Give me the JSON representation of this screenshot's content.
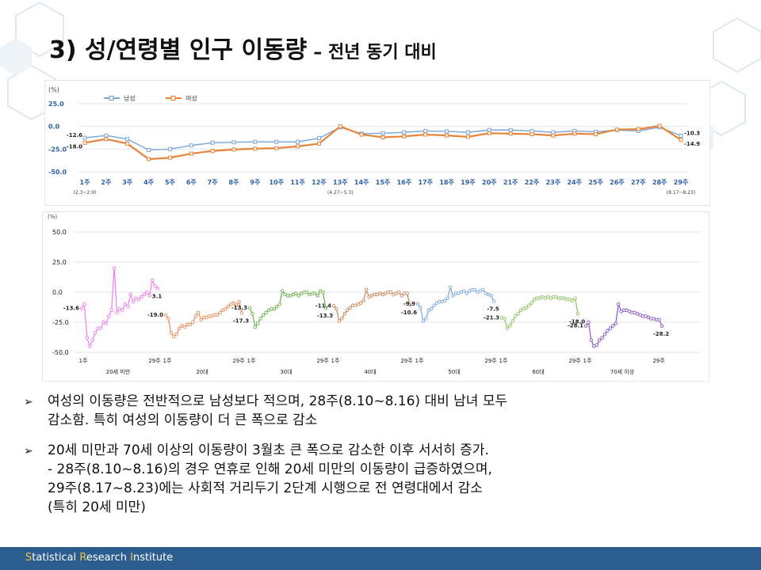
{
  "slide": {
    "title": "3) 성/연령별 인구 이동량",
    "subtitle": "– 전년 동기 대비"
  },
  "chart_data": [
    {
      "type": "line",
      "y_unit": "(%)",
      "ylim": [
        -50,
        25
      ],
      "yticks": [
        "25.0",
        "0.0",
        "-25.0",
        "-50.0"
      ],
      "ytick_values": [
        25,
        0,
        -25,
        -50
      ],
      "categories": [
        "1주",
        "2주",
        "3주",
        "4주",
        "5주",
        "6주",
        "7주",
        "8주",
        "9주",
        "10주",
        "11주",
        "12주",
        "13주",
        "14주",
        "15주",
        "16주",
        "17주",
        "18주",
        "19주",
        "20주",
        "21주",
        "22주",
        "23주",
        "24주",
        "25주",
        "26주",
        "27주",
        "28주",
        "29주"
      ],
      "category_notes": [
        {
          "index": 0,
          "text": "(2.3~2.9)"
        },
        {
          "index": 12,
          "text": "(4.27~5.3)"
        },
        {
          "index": 28,
          "text": "(8.17~8.23)"
        }
      ],
      "legend": [
        "남성",
        "여성"
      ],
      "series": [
        {
          "name": "남성",
          "color": "#7aa6d8",
          "values": [
            -12.6,
            -10,
            -14,
            -26,
            -25,
            -21,
            -18,
            -17.5,
            -17,
            -17,
            -17,
            -13,
            -1,
            -8,
            -7.5,
            -6.5,
            -5,
            -5.5,
            -6.5,
            -4,
            -4,
            -5,
            -6.5,
            -5,
            -6,
            -4,
            -5,
            -1,
            -10.3
          ]
        },
        {
          "name": "여성",
          "color": "#e8843a",
          "values": [
            -18.0,
            -14,
            -19,
            -36,
            -34.5,
            -30,
            -27,
            -25.5,
            -24.5,
            -24,
            -22,
            -19,
            0,
            -9,
            -12,
            -11,
            -9,
            -10,
            -11.5,
            -7.5,
            -8,
            -8.5,
            -10,
            -8,
            -8.5,
            -3.5,
            -3,
            0.5,
            -14.9
          ]
        }
      ],
      "data_labels": [
        {
          "series": 0,
          "index": 0,
          "text": "-12.6"
        },
        {
          "series": 1,
          "index": 0,
          "text": "-18.0"
        },
        {
          "series": 0,
          "index": 28,
          "text": "-10.3"
        },
        {
          "series": 1,
          "index": 28,
          "text": "-14.9"
        }
      ]
    },
    {
      "type": "line",
      "y_unit": "(%)",
      "ylim": [
        -50,
        50
      ],
      "yticks": [
        "50.0",
        "25.0",
        "0.0",
        "-25.0",
        "-50.0"
      ],
      "ytick_values": [
        50,
        25,
        0,
        -25,
        -50
      ],
      "start_week_label": "1주",
      "end_week_label": "29주",
      "groups": [
        {
          "name": "20세 미만",
          "color": "#f07cf0",
          "values": [
            -13.6,
            -10,
            -38,
            -45,
            -40,
            -34,
            -30,
            -30,
            -25,
            -26,
            -20,
            -15,
            20,
            -17,
            -14,
            -15,
            -10,
            -12,
            -2,
            -8,
            -5,
            -6,
            -4,
            -2,
            0,
            -3,
            10,
            5,
            3.1
          ],
          "first_label": "-13.6",
          "last_label": "3.1"
        },
        {
          "name": "20대",
          "color": "#e88a55",
          "values": [
            -19.0,
            -22,
            -34,
            -37,
            -35,
            -30,
            -28,
            -29,
            -27,
            -27,
            -25,
            -20,
            -17,
            -23,
            -21,
            -21,
            -20,
            -20,
            -19,
            -19,
            -17,
            -15,
            -14,
            -12,
            -10,
            -9,
            -11,
            -8,
            -17.3
          ],
          "first_label": "-19.0",
          "last_label": "-17.3"
        },
        {
          "name": "30대",
          "color": "#6ab04c",
          "values": [
            -13.3,
            -18,
            -29,
            -26,
            -22,
            -19,
            -17,
            -15,
            -14,
            -14,
            -12,
            -10,
            1,
            -2,
            -3,
            -3,
            -2,
            -1,
            -3,
            -1,
            0,
            0,
            -2,
            -1,
            -1,
            -3,
            1,
            0,
            -13.3
          ],
          "first_label": "-13.3",
          "last_label": "-13.3"
        },
        {
          "name": "40대",
          "color": "#c8845a",
          "values": [
            -11.4,
            -14,
            -24,
            -22,
            -18,
            -15,
            -13,
            -11,
            -11,
            -10,
            -9,
            -7,
            2,
            -4,
            -3,
            -2,
            -2,
            -1,
            -2,
            -1,
            0,
            0,
            -2,
            -1,
            0,
            -3,
            -1,
            -1,
            -10.6
          ],
          "first_label": "-11.4",
          "last_label": "-10.6"
        },
        {
          "name": "50대",
          "color": "#7aa6d8",
          "values": [
            -9.9,
            -13,
            -24,
            -22,
            -15,
            -14,
            -11,
            -9,
            -8,
            -8,
            -7,
            -5,
            4,
            -3,
            -1,
            -1,
            0,
            1,
            -1,
            1,
            2,
            2,
            0,
            1,
            2,
            -1,
            -2,
            -3,
            -7.5
          ],
          "first_label": "-9.9",
          "last_label": "-7.5"
        },
        {
          "name": "60대",
          "color": "#8fc060",
          "values": [
            -21.3,
            -22,
            -30,
            -28,
            -24,
            -20,
            -18,
            -15,
            -14,
            -13,
            -11,
            -9,
            -6,
            -5,
            -5,
            -4,
            -5,
            -4,
            -5,
            -4,
            -4,
            -5,
            -5,
            -5,
            -6,
            -6,
            -7,
            -5,
            -18.0
          ],
          "first_label": "-21.3",
          "last_label": "-18.0"
        },
        {
          "name": "70세 이상",
          "color": "#8a55c8",
          "values": [
            -28.1,
            -25,
            -40,
            -45,
            -44,
            -40,
            -38,
            -35,
            -32,
            -30,
            -28,
            -26,
            -10,
            -16,
            -15,
            -15,
            -16,
            -17,
            -17,
            -18,
            -19,
            -20,
            -20,
            -21,
            -22,
            -22,
            -23,
            -23,
            -28.2
          ],
          "first_label": "-28.1",
          "last_label": "-28.2"
        }
      ]
    }
  ],
  "bullets": [
    {
      "arrow": "➢",
      "text": "여성의 이동량은 전반적으로 남성보다 적으며, 28주(8.10~8.16) 대비 남녀 모두\n감소함. 특히 여성의 이동량이 더 큰 폭으로 감소"
    },
    {
      "arrow": "➢",
      "text": "20세 미만과 70세 이상의 이동량이 3월초 큰 폭으로 감소한 이후 서서히 증가.\n- 28주(8.10~8.16)의 경우 연휴로 인해 20세 미만의 이동량이 급증하였으며,\n   29주(8.17~8.23)에는 사회적 거리두기 2단계 시행으로 전 연령대에서 감소\n (특히 20세 미만)"
    }
  ],
  "footer": {
    "parts": [
      {
        "text": "S",
        "hl": true
      },
      {
        "text": "tatistical ",
        "hl": false
      },
      {
        "text": "R",
        "hl": true
      },
      {
        "text": "esearch ",
        "hl": false
      },
      {
        "text": "I",
        "hl": true
      },
      {
        "text": "nstitute",
        "hl": false
      }
    ]
  },
  "colors": {
    "footer_bg": "#2c5d8f",
    "footer_highlight": "#f0c24a",
    "grid": "#e6e6e6"
  }
}
